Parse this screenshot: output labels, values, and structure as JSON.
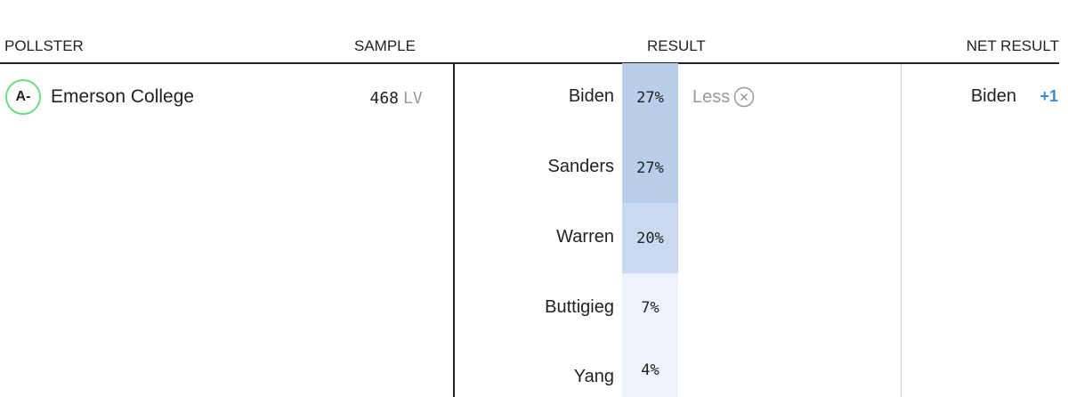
{
  "header": {
    "pollster": "POLLSTER",
    "sample": "SAMPLE",
    "result": "RESULT",
    "net_result": "NET RESULT"
  },
  "row": {
    "grade": "A-",
    "pollster": "Emerson College",
    "sample": "468",
    "sample_type": "LV",
    "results": [
      {
        "name": "Biden",
        "pct": "27%"
      },
      {
        "name": "Sanders",
        "pct": "27%"
      },
      {
        "name": "Warren",
        "pct": "20%"
      },
      {
        "name": "Buttigieg",
        "pct": "7%"
      },
      {
        "name": "Yang",
        "pct": "4%"
      }
    ],
    "toggle": "Less",
    "net_leader": "Biden",
    "net_margin": "+1"
  }
}
